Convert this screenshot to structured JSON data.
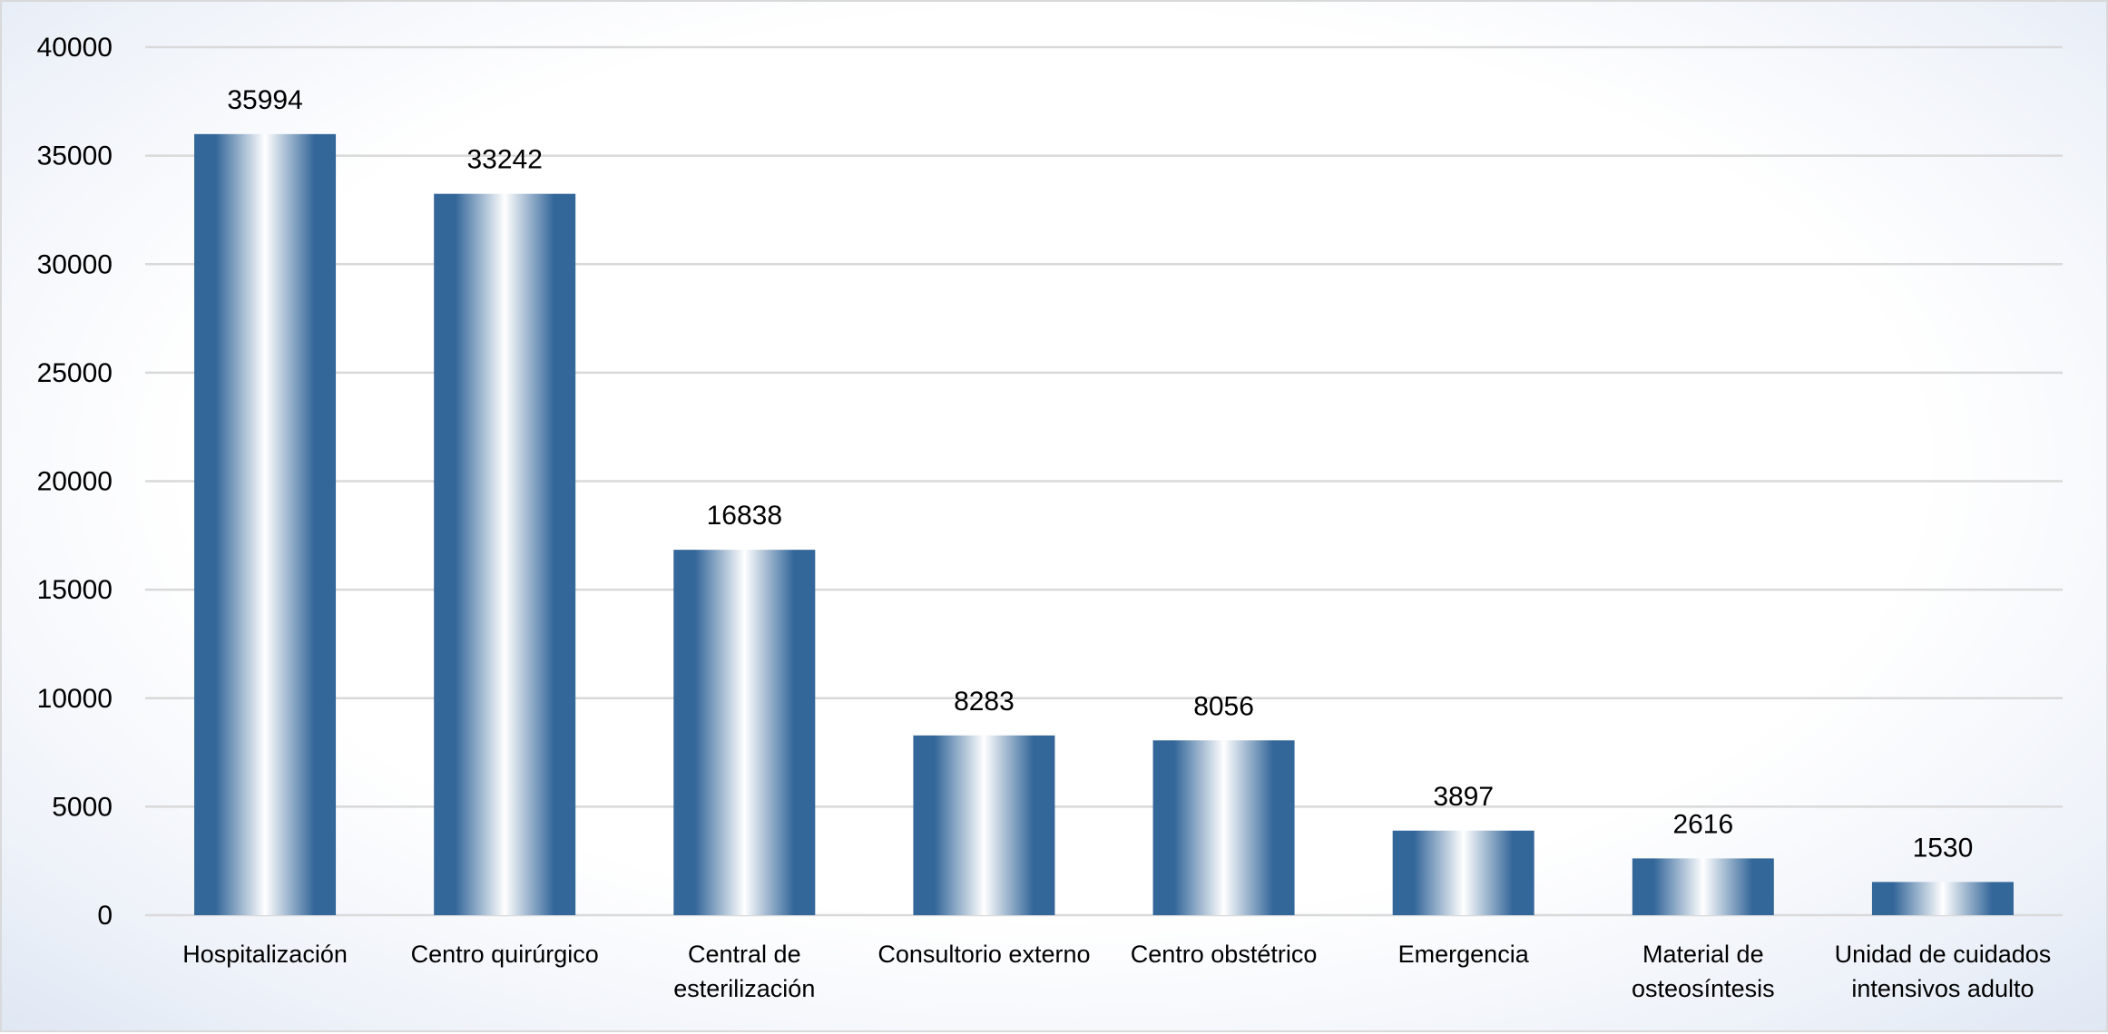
{
  "chart_data": {
    "type": "bar",
    "title": "",
    "xlabel": "",
    "ylabel": "",
    "categories": [
      [
        "Hospitalización"
      ],
      [
        "Centro quirúrgico"
      ],
      [
        "Central de",
        "esterilización"
      ],
      [
        "Consultorio externo"
      ],
      [
        "Centro obstétrico"
      ],
      [
        "Emergencia"
      ],
      [
        "Material de",
        "osteosíntesis"
      ],
      [
        "Unidad de cuidados",
        "intensivos adulto"
      ]
    ],
    "values": [
      35994,
      33242,
      16838,
      8283,
      8056,
      3897,
      2616,
      1530
    ],
    "ylim": [
      0,
      40000
    ],
    "yticks": [
      0,
      5000,
      10000,
      15000,
      20000,
      25000,
      30000,
      35000,
      40000
    ],
    "grid": true,
    "legend": "none",
    "colors": {
      "bar_edge": "#336699",
      "bar_center": "#ffffff",
      "grid": "#d9d9d9"
    }
  }
}
